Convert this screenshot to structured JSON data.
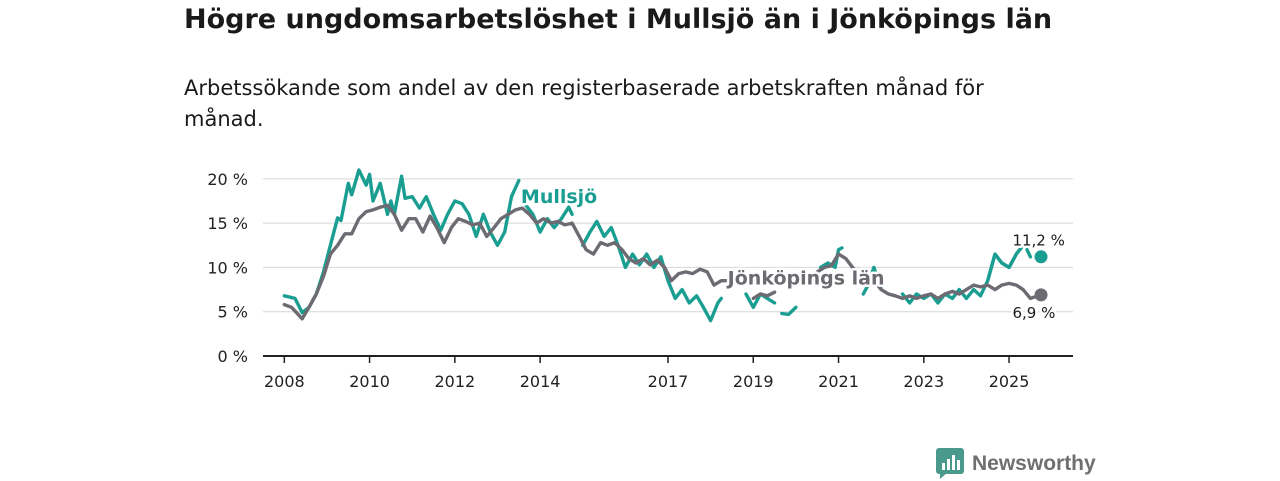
{
  "title": "Högre ungdomsarbetslöshet i Mullsjö än i Jönköpings län",
  "subtitle": "Arbetssökande som andel av den registerbaserade arbetskraften månad för månad.",
  "brand": {
    "name": "Newsworthy",
    "icon": "newsworthy-logo-icon",
    "color": "#4a9a8c"
  },
  "chart_data": {
    "type": "line",
    "title": "Högre ungdomsarbetslöshet i Mullsjö än i Jönköpings län",
    "ylabel": "",
    "xlabel": "",
    "ylim": [
      0,
      21
    ],
    "xlim": [
      2007.5,
      2026.5
    ],
    "y_ticks": [
      0,
      5,
      10,
      15,
      20
    ],
    "y_tick_labels": [
      "0 %",
      "5 %",
      "10 %",
      "15 %",
      "20 %"
    ],
    "x_ticks": [
      2008,
      2010,
      2012,
      2014,
      2017,
      2019,
      2021,
      2023,
      2025
    ],
    "x_tick_labels": [
      "2008",
      "2010",
      "2012",
      "2014",
      "2017",
      "2019",
      "2021",
      "2023",
      "2025"
    ],
    "series": [
      {
        "name": "Mullsjö",
        "label": "Mullsjö",
        "color": "#1a9e92",
        "end_label": "11,2 %",
        "end_value": 11.2,
        "end_x": 2025.75,
        "points": [
          [
            2008.0,
            6.8
          ],
          [
            2008.25,
            6.5
          ],
          [
            2008.42,
            4.9
          ],
          [
            2008.58,
            5.5
          ],
          [
            2008.75,
            7.0
          ],
          [
            2008.92,
            9.5
          ],
          [
            2009.08,
            12.5
          ],
          [
            2009.25,
            15.6
          ],
          [
            2009.33,
            15.3
          ],
          [
            2009.5,
            19.5
          ],
          [
            2009.58,
            18.2
          ],
          [
            2009.75,
            21.0
          ],
          [
            2009.92,
            19.3
          ],
          [
            2010.0,
            20.5
          ],
          [
            2010.08,
            17.5
          ],
          [
            2010.25,
            19.5
          ],
          [
            2010.42,
            16.0
          ],
          [
            2010.5,
            17.5
          ],
          [
            2010.58,
            16.0
          ],
          [
            2010.75,
            20.3
          ],
          [
            2010.83,
            17.8
          ],
          [
            2011.0,
            18.0
          ],
          [
            2011.17,
            16.7
          ],
          [
            2011.33,
            18.0
          ],
          [
            2011.5,
            16.0
          ],
          [
            2011.67,
            14.2
          ],
          [
            2011.83,
            16.0
          ],
          [
            2012.0,
            17.5
          ],
          [
            2012.17,
            17.2
          ],
          [
            2012.33,
            16.0
          ],
          [
            2012.5,
            13.5
          ],
          [
            2012.67,
            16.0
          ],
          [
            2012.83,
            14.0
          ],
          [
            2013.0,
            12.5
          ],
          [
            2013.17,
            14.0
          ],
          [
            2013.33,
            18.0
          ],
          [
            2013.5,
            19.8
          ],
          [
            2013.67,
            17.0
          ],
          [
            2013.83,
            16.0
          ],
          [
            2014.0,
            14.0
          ],
          [
            2014.17,
            15.5
          ],
          [
            2014.33,
            14.5
          ],
          [
            2014.5,
            15.5
          ],
          [
            2014.67,
            16.8
          ],
          [
            2014.75,
            16.0
          ]
        ],
        "segments": [
          [
            [
              2008.0,
              6.8
            ],
            [
              2008.25,
              6.5
            ],
            [
              2008.42,
              4.9
            ],
            [
              2008.58,
              5.5
            ],
            [
              2008.75,
              7.0
            ],
            [
              2008.92,
              9.5
            ],
            [
              2009.08,
              12.5
            ],
            [
              2009.25,
              15.6
            ],
            [
              2009.33,
              15.3
            ],
            [
              2009.5,
              19.5
            ],
            [
              2009.58,
              18.2
            ],
            [
              2009.75,
              21.0
            ],
            [
              2009.92,
              19.3
            ],
            [
              2010.0,
              20.5
            ],
            [
              2010.08,
              17.5
            ],
            [
              2010.25,
              19.5
            ],
            [
              2010.42,
              16.0
            ],
            [
              2010.5,
              17.5
            ],
            [
              2010.58,
              16.0
            ],
            [
              2010.75,
              20.3
            ],
            [
              2010.83,
              17.8
            ],
            [
              2011.0,
              18.0
            ],
            [
              2011.17,
              16.7
            ],
            [
              2011.33,
              18.0
            ],
            [
              2011.5,
              16.0
            ],
            [
              2011.67,
              14.2
            ],
            [
              2011.83,
              16.0
            ],
            [
              2012.0,
              17.5
            ],
            [
              2012.17,
              17.2
            ],
            [
              2012.33,
              16.0
            ],
            [
              2012.5,
              13.5
            ],
            [
              2012.67,
              16.0
            ],
            [
              2012.83,
              14.0
            ],
            [
              2013.0,
              12.5
            ],
            [
              2013.17,
              14.0
            ],
            [
              2013.33,
              18.0
            ],
            [
              2013.5,
              19.8
            ]
          ],
          [
            [
              2013.67,
              17.0
            ],
            [
              2013.83,
              16.0
            ],
            [
              2014.0,
              14.0
            ],
            [
              2014.17,
              15.5
            ],
            [
              2014.33,
              14.5
            ],
            [
              2014.5,
              15.5
            ],
            [
              2014.67,
              16.8
            ],
            [
              2014.75,
              16.0
            ]
          ],
          [
            [
              2015.0,
              12.5
            ],
            [
              2015.17,
              14.0
            ],
            [
              2015.33,
              15.2
            ],
            [
              2015.5,
              13.5
            ],
            [
              2015.67,
              14.5
            ],
            [
              2015.83,
              12.5
            ],
            [
              2016.0,
              10.0
            ],
            [
              2016.17,
              11.5
            ],
            [
              2016.33,
              10.3
            ],
            [
              2016.5,
              11.5
            ],
            [
              2016.67,
              10.0
            ],
            [
              2016.83,
              11.2
            ],
            [
              2017.0,
              8.5
            ],
            [
              2017.17,
              6.5
            ],
            [
              2017.33,
              7.5
            ],
            [
              2017.5,
              6.0
            ],
            [
              2017.67,
              6.8
            ],
            [
              2017.83,
              5.5
            ],
            [
              2018.0,
              4.0
            ],
            [
              2018.17,
              6.0
            ],
            [
              2018.25,
              6.5
            ]
          ],
          [
            [
              2018.83,
              7.0
            ],
            [
              2019.0,
              5.5
            ],
            [
              2019.17,
              7.0
            ],
            [
              2019.33,
              6.5
            ],
            [
              2019.5,
              6.0
            ]
          ],
          [
            [
              2019.67,
              4.8
            ],
            [
              2019.83,
              4.7
            ],
            [
              2020.0,
              5.5
            ]
          ],
          [
            [
              2020.58,
              10.0
            ],
            [
              2020.75,
              10.5
            ],
            [
              2020.92,
              10.0
            ],
            [
              2021.0,
              12.0
            ],
            [
              2021.08,
              12.2
            ]
          ],
          [
            [
              2021.58,
              7.0
            ],
            [
              2021.67,
              7.8
            ],
            [
              2021.83,
              10.0
            ],
            [
              2022.0,
              7.5
            ]
          ],
          [
            [
              2022.5,
              7.0
            ],
            [
              2022.67,
              6.0
            ],
            [
              2022.83,
              7.0
            ],
            [
              2023.0,
              6.5
            ],
            [
              2023.17,
              7.0
            ],
            [
              2023.33,
              6.0
            ],
            [
              2023.5,
              7.0
            ],
            [
              2023.67,
              6.5
            ],
            [
              2023.83,
              7.5
            ],
            [
              2024.0,
              6.5
            ],
            [
              2024.17,
              7.5
            ],
            [
              2024.33,
              6.8
            ],
            [
              2024.5,
              8.5
            ],
            [
              2024.67,
              11.5
            ],
            [
              2024.83,
              10.5
            ],
            [
              2025.0,
              10.0
            ],
            [
              2025.17,
              11.5
            ],
            [
              2025.33,
              12.5
            ]
          ]
        ]
      },
      {
        "name": "Jönköpings län",
        "label": "Jönköpings län",
        "color": "#6e6a72",
        "end_label": "6,9 %",
        "end_value": 6.9,
        "end_x": 2025.75,
        "points": [
          [
            2008.0,
            5.8
          ],
          [
            2008.17,
            5.5
          ],
          [
            2008.42,
            4.2
          ],
          [
            2008.58,
            5.5
          ],
          [
            2008.75,
            7.0
          ],
          [
            2008.92,
            9.0
          ],
          [
            2009.08,
            11.5
          ],
          [
            2009.25,
            12.5
          ],
          [
            2009.42,
            13.8
          ],
          [
            2009.58,
            13.8
          ],
          [
            2009.75,
            15.5
          ],
          [
            2009.92,
            16.3
          ],
          [
            2010.08,
            16.5
          ],
          [
            2010.25,
            16.8
          ],
          [
            2010.42,
            17.0
          ],
          [
            2010.58,
            16.0
          ],
          [
            2010.75,
            14.2
          ],
          [
            2010.92,
            15.5
          ],
          [
            2011.08,
            15.5
          ],
          [
            2011.25,
            14.0
          ],
          [
            2011.42,
            15.8
          ],
          [
            2011.58,
            14.5
          ],
          [
            2011.75,
            12.8
          ],
          [
            2011.92,
            14.5
          ],
          [
            2012.08,
            15.5
          ],
          [
            2012.25,
            15.2
          ],
          [
            2012.42,
            14.8
          ],
          [
            2012.58,
            15.0
          ],
          [
            2012.75,
            13.5
          ],
          [
            2012.92,
            14.5
          ],
          [
            2013.08,
            15.5
          ],
          [
            2013.25,
            16.0
          ],
          [
            2013.42,
            16.5
          ],
          [
            2013.58,
            16.7
          ],
          [
            2013.75,
            16.0
          ],
          [
            2013.92,
            15.0
          ],
          [
            2014.08,
            15.5
          ],
          [
            2014.25,
            15.0
          ],
          [
            2014.42,
            15.2
          ],
          [
            2014.58,
            14.8
          ],
          [
            2014.75,
            15.0
          ],
          [
            2014.92,
            13.5
          ],
          [
            2015.08,
            12.0
          ],
          [
            2015.25,
            11.5
          ],
          [
            2015.42,
            12.8
          ],
          [
            2015.58,
            12.5
          ],
          [
            2015.75,
            12.8
          ],
          [
            2015.92,
            12.0
          ],
          [
            2016.08,
            11.0
          ],
          [
            2016.25,
            10.5
          ],
          [
            2016.42,
            11.0
          ],
          [
            2016.58,
            10.3
          ],
          [
            2016.75,
            10.8
          ],
          [
            2016.92,
            10.0
          ],
          [
            2017.08,
            8.5
          ],
          [
            2017.25,
            9.3
          ],
          [
            2017.42,
            9.5
          ],
          [
            2017.58,
            9.3
          ],
          [
            2017.75,
            9.8
          ],
          [
            2017.92,
            9.5
          ],
          [
            2018.08,
            8.0
          ],
          [
            2018.25,
            8.5
          ],
          [
            2018.42,
            8.5
          ]
        ]
      }
    ]
  }
}
